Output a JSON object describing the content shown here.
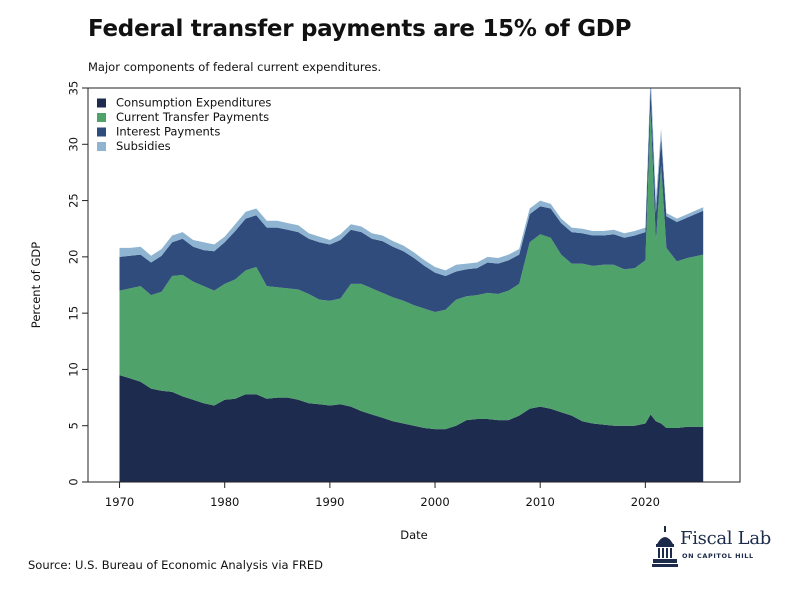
{
  "title": "Federal transfer payments are 15% of GDP",
  "subtitle": "Major components of federal current expenditures.",
  "source": "Source: U.S. Bureau of Economic Analysis via FRED",
  "logo": {
    "name": "Fiscal Lab",
    "tagline": "ON CAPITOL HILL",
    "icon": "capitol-dome-icon"
  },
  "colors": {
    "consumption": "#1d2b4e",
    "transfers": "#4fa269",
    "interest": "#2f4c7d",
    "subsidies": "#8fb4d2"
  },
  "chart_data": {
    "type": "area",
    "stacked": true,
    "xlabel": "Date",
    "ylabel": "Percent of GDP",
    "xlim": [
      1967,
      2029
    ],
    "ylim": [
      0,
      35
    ],
    "xticks": [
      1970,
      1980,
      1990,
      2000,
      2010,
      2020
    ],
    "yticks": [
      0,
      5,
      10,
      15,
      20,
      25,
      30,
      35
    ],
    "legend_position": "top-left",
    "x": [
      1970,
      1971,
      1972,
      1973,
      1974,
      1975,
      1976,
      1977,
      1978,
      1979,
      1980,
      1981,
      1982,
      1983,
      1984,
      1985,
      1986,
      1987,
      1988,
      1989,
      1990,
      1991,
      1992,
      1993,
      1994,
      1995,
      1996,
      1997,
      1998,
      1999,
      2000,
      2001,
      2002,
      2003,
      2004,
      2005,
      2006,
      2007,
      2008,
      2009,
      2010,
      2011,
      2012,
      2013,
      2014,
      2015,
      2016,
      2017,
      2018,
      2019,
      2020,
      2020.5,
      2021,
      2021.5,
      2022,
      2023,
      2024,
      2025.5
    ],
    "series": [
      {
        "name": "Consumption Expenditures",
        "values": [
          9.5,
          9.2,
          8.9,
          8.3,
          8.1,
          8.0,
          7.6,
          7.3,
          7.0,
          6.8,
          7.3,
          7.4,
          7.8,
          7.8,
          7.4,
          7.5,
          7.5,
          7.3,
          7.0,
          6.9,
          6.8,
          6.9,
          6.7,
          6.3,
          6.0,
          5.7,
          5.4,
          5.2,
          5.0,
          4.8,
          4.7,
          4.7,
          5.0,
          5.5,
          5.6,
          5.6,
          5.5,
          5.5,
          5.9,
          6.5,
          6.7,
          6.5,
          6.2,
          5.9,
          5.4,
          5.2,
          5.1,
          5.0,
          5.0,
          5.0,
          5.2,
          6.0,
          5.4,
          5.2,
          4.8,
          4.8,
          4.9,
          4.9
        ]
      },
      {
        "name": "Current Transfer Payments",
        "values": [
          7.5,
          8.0,
          8.5,
          8.3,
          8.8,
          10.3,
          10.8,
          10.5,
          10.4,
          10.2,
          10.3,
          10.6,
          11.0,
          11.3,
          10.0,
          9.8,
          9.7,
          9.8,
          9.7,
          9.3,
          9.3,
          9.4,
          10.9,
          11.3,
          11.2,
          11.1,
          11.0,
          10.9,
          10.7,
          10.6,
          10.4,
          10.6,
          11.2,
          11.0,
          11.0,
          11.2,
          11.2,
          11.5,
          11.7,
          14.8,
          15.3,
          15.2,
          14.0,
          13.5,
          14.0,
          14.0,
          14.2,
          14.3,
          13.9,
          14.0,
          14.5,
          27.0,
          16.0,
          23.0,
          16.0,
          14.8,
          15.0,
          15.3
        ]
      },
      {
        "name": "Interest Payments",
        "values": [
          3.0,
          2.9,
          2.8,
          2.9,
          3.2,
          3.0,
          3.2,
          3.1,
          3.2,
          3.5,
          3.7,
          4.3,
          4.6,
          4.6,
          5.2,
          5.3,
          5.2,
          5.1,
          4.9,
          5.1,
          5.0,
          5.2,
          4.8,
          4.6,
          4.4,
          4.6,
          4.5,
          4.4,
          4.2,
          3.8,
          3.5,
          3.0,
          2.5,
          2.4,
          2.4,
          2.7,
          2.7,
          2.7,
          2.6,
          2.5,
          2.5,
          2.6,
          2.8,
          2.8,
          2.7,
          2.7,
          2.6,
          2.7,
          2.8,
          2.9,
          2.5,
          2.2,
          2.5,
          2.4,
          2.8,
          3.5,
          3.6,
          3.9
        ]
      },
      {
        "name": "Subsidies",
        "values": [
          0.8,
          0.7,
          0.7,
          0.6,
          0.6,
          0.6,
          0.6,
          0.6,
          0.7,
          0.6,
          0.5,
          0.6,
          0.6,
          0.6,
          0.6,
          0.6,
          0.6,
          0.6,
          0.5,
          0.5,
          0.4,
          0.5,
          0.5,
          0.5,
          0.5,
          0.5,
          0.5,
          0.5,
          0.5,
          0.5,
          0.5,
          0.5,
          0.6,
          0.5,
          0.5,
          0.5,
          0.5,
          0.5,
          0.5,
          0.5,
          0.5,
          0.4,
          0.4,
          0.4,
          0.4,
          0.4,
          0.4,
          0.4,
          0.4,
          0.4,
          0.4,
          1.3,
          1.2,
          0.8,
          0.3,
          0.3,
          0.3,
          0.3
        ]
      }
    ]
  }
}
